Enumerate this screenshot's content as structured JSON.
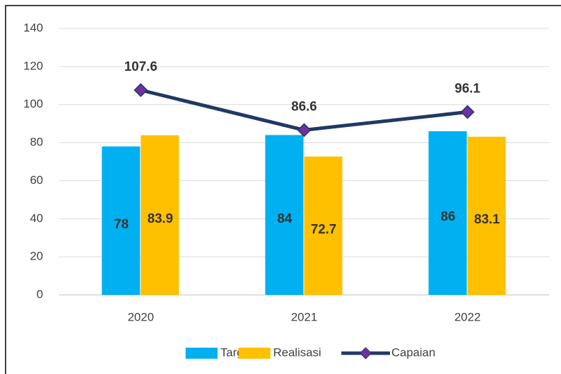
{
  "chart_data": {
    "type": "bar",
    "categories": [
      "2020",
      "2021",
      "2022"
    ],
    "series": [
      {
        "name": "Target",
        "type": "bar",
        "color": "#00b0f0",
        "values": [
          78,
          84,
          86
        ]
      },
      {
        "name": "Realisasi",
        "type": "bar",
        "color": "#ffc000",
        "values": [
          83.9,
          72.7,
          83.1
        ]
      },
      {
        "name": "Capaian",
        "type": "line",
        "color": "#203864",
        "marker_color": "#7030a0",
        "values": [
          107.6,
          86.6,
          96.1
        ]
      }
    ],
    "ylim": [
      0,
      140
    ],
    "yticks": [
      0,
      20,
      40,
      60,
      80,
      100,
      120,
      140
    ],
    "grid": true,
    "legend": "bottom"
  }
}
